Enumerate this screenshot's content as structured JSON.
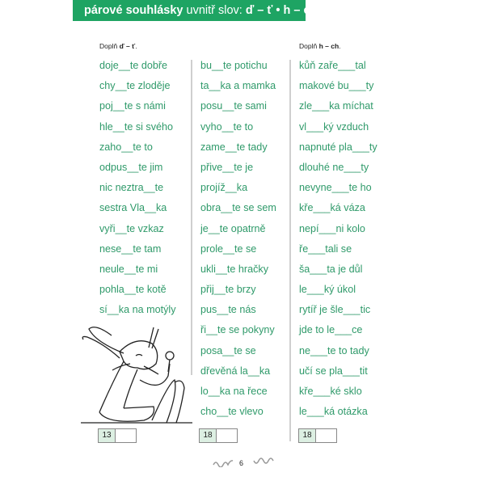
{
  "header": {
    "bold": "párové souhlásky",
    "normal": " uvnitř slov: ",
    "letters": "ď – ť • h – ch"
  },
  "instructions": [
    {
      "prefix": "Doplň ",
      "bold": "ď – ť",
      "suffix": "."
    },
    {
      "prefix": "Doplň ",
      "bold": "h – ch",
      "suffix": "."
    }
  ],
  "columns": [
    [
      "doje__te dobře",
      "chy__te zloděje",
      "poj__te s námi",
      "hle__te si svého",
      "zaho__te to",
      "odpus__te jim",
      "nic neztra__te",
      "sestra Vla__ka",
      "vyři__te vzkaz",
      "nese__te tam",
      "neule__te mi",
      "pohla__te kotě",
      "sí__ka na motýly"
    ],
    [
      "bu__te potichu",
      "ta__ka a mamka",
      "posu__te sami",
      "vyho__te to",
      "zame__te tady",
      "přive__te je",
      "projíž__ka",
      "obra__te se sem",
      "je__te opatrně",
      "prole__te se",
      "ukli__te hračky",
      "přij__te brzy",
      "pus__te nás",
      "ři__te se pokyny",
      "posa__te se",
      "dřevěná la__ka",
      "lo__ka na řece",
      "cho__te vlevo"
    ],
    [
      "kůň zaře___tal",
      "makové bu___ty",
      "zle___ka míchat",
      "vl___ký vzduch",
      "napnuté pla___ty",
      "dlouhé ne___ty",
      "nevyne___te ho",
      "kře___ká váza",
      "nepí___ni kolo",
      "ře___tali se",
      "ša___ta je důl",
      "le___ký úkol",
      "rytíř je šle___tic",
      "jde to le___ce",
      "ne___te to tady",
      "učí se pla___tit",
      "kře___ké sklo",
      "le___ká otázka"
    ]
  ],
  "scores": [
    "13",
    "18",
    "18"
  ],
  "page_number": "6",
  "colors": {
    "accent": "#1ea463",
    "text": "#2f9a6a"
  }
}
